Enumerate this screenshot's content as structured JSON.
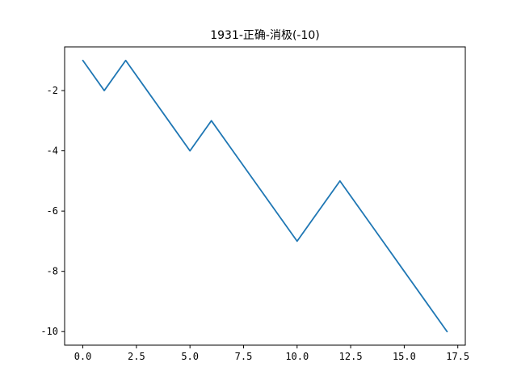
{
  "chart_data": {
    "type": "line",
    "title": "1931-正确-消极(-10)",
    "xlabel": "",
    "ylabel": "",
    "xlim": [
      -0.85,
      17.85
    ],
    "ylim": [
      -10.45,
      -0.55
    ],
    "xticks": [
      0.0,
      2.5,
      5.0,
      7.5,
      10.0,
      12.5,
      15.0,
      17.5
    ],
    "xtick_labels": [
      "0.0",
      "2.5",
      "5.0",
      "7.5",
      "10.0",
      "12.5",
      "15.0",
      "17.5"
    ],
    "yticks": [
      -2,
      -4,
      -6,
      -8,
      -10
    ],
    "ytick_labels": [
      "-2",
      "-4",
      "-6",
      "-8",
      "-10"
    ],
    "grid": false,
    "series": [
      {
        "color": "#1f77b4",
        "x": [
          0,
          1,
          2,
          3,
          4,
          5,
          6,
          7,
          8,
          9,
          10,
          11,
          12,
          13,
          14,
          15,
          16,
          17
        ],
        "y": [
          -1,
          -2,
          -1,
          -2,
          -3,
          -4,
          -3,
          -4,
          -5,
          -6,
          -7,
          -6,
          -5,
          -6,
          -7,
          -8,
          -9,
          -10
        ]
      }
    ]
  }
}
